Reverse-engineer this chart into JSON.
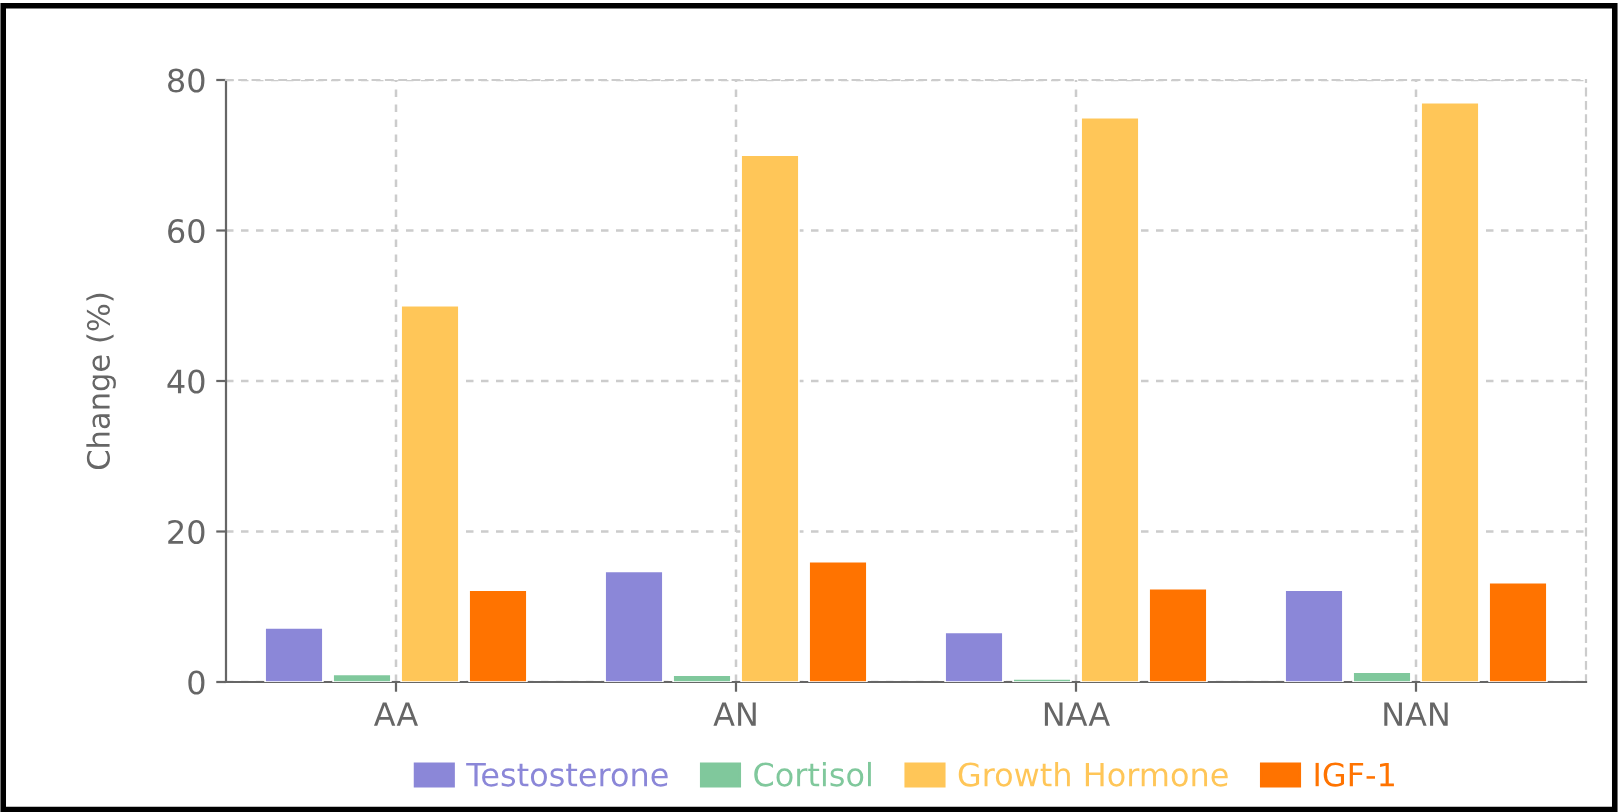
{
  "chart_data": {
    "type": "bar",
    "ylabel": "Change (%)",
    "categories": [
      "AA",
      "AN",
      "NAA",
      "NAN"
    ],
    "series": [
      {
        "name": "Testosterone",
        "color": "#8b87d8",
        "values": [
          7.2,
          14.7,
          6.6,
          12.2
        ]
      },
      {
        "name": "Cortisol",
        "color": "#80c89c",
        "values": [
          1.0,
          0.9,
          0.4,
          1.3
        ]
      },
      {
        "name": "Growth Hormone",
        "color": "#ffc658",
        "values": [
          50,
          70,
          75,
          77
        ]
      },
      {
        "name": "IGF-1",
        "color": "#ff7300",
        "values": [
          12.2,
          16,
          12.4,
          13.2
        ]
      }
    ],
    "ylim": [
      0,
      80
    ],
    "yticks": [
      0,
      20,
      40,
      60,
      80
    ],
    "grid": true,
    "legend": "bottom"
  }
}
